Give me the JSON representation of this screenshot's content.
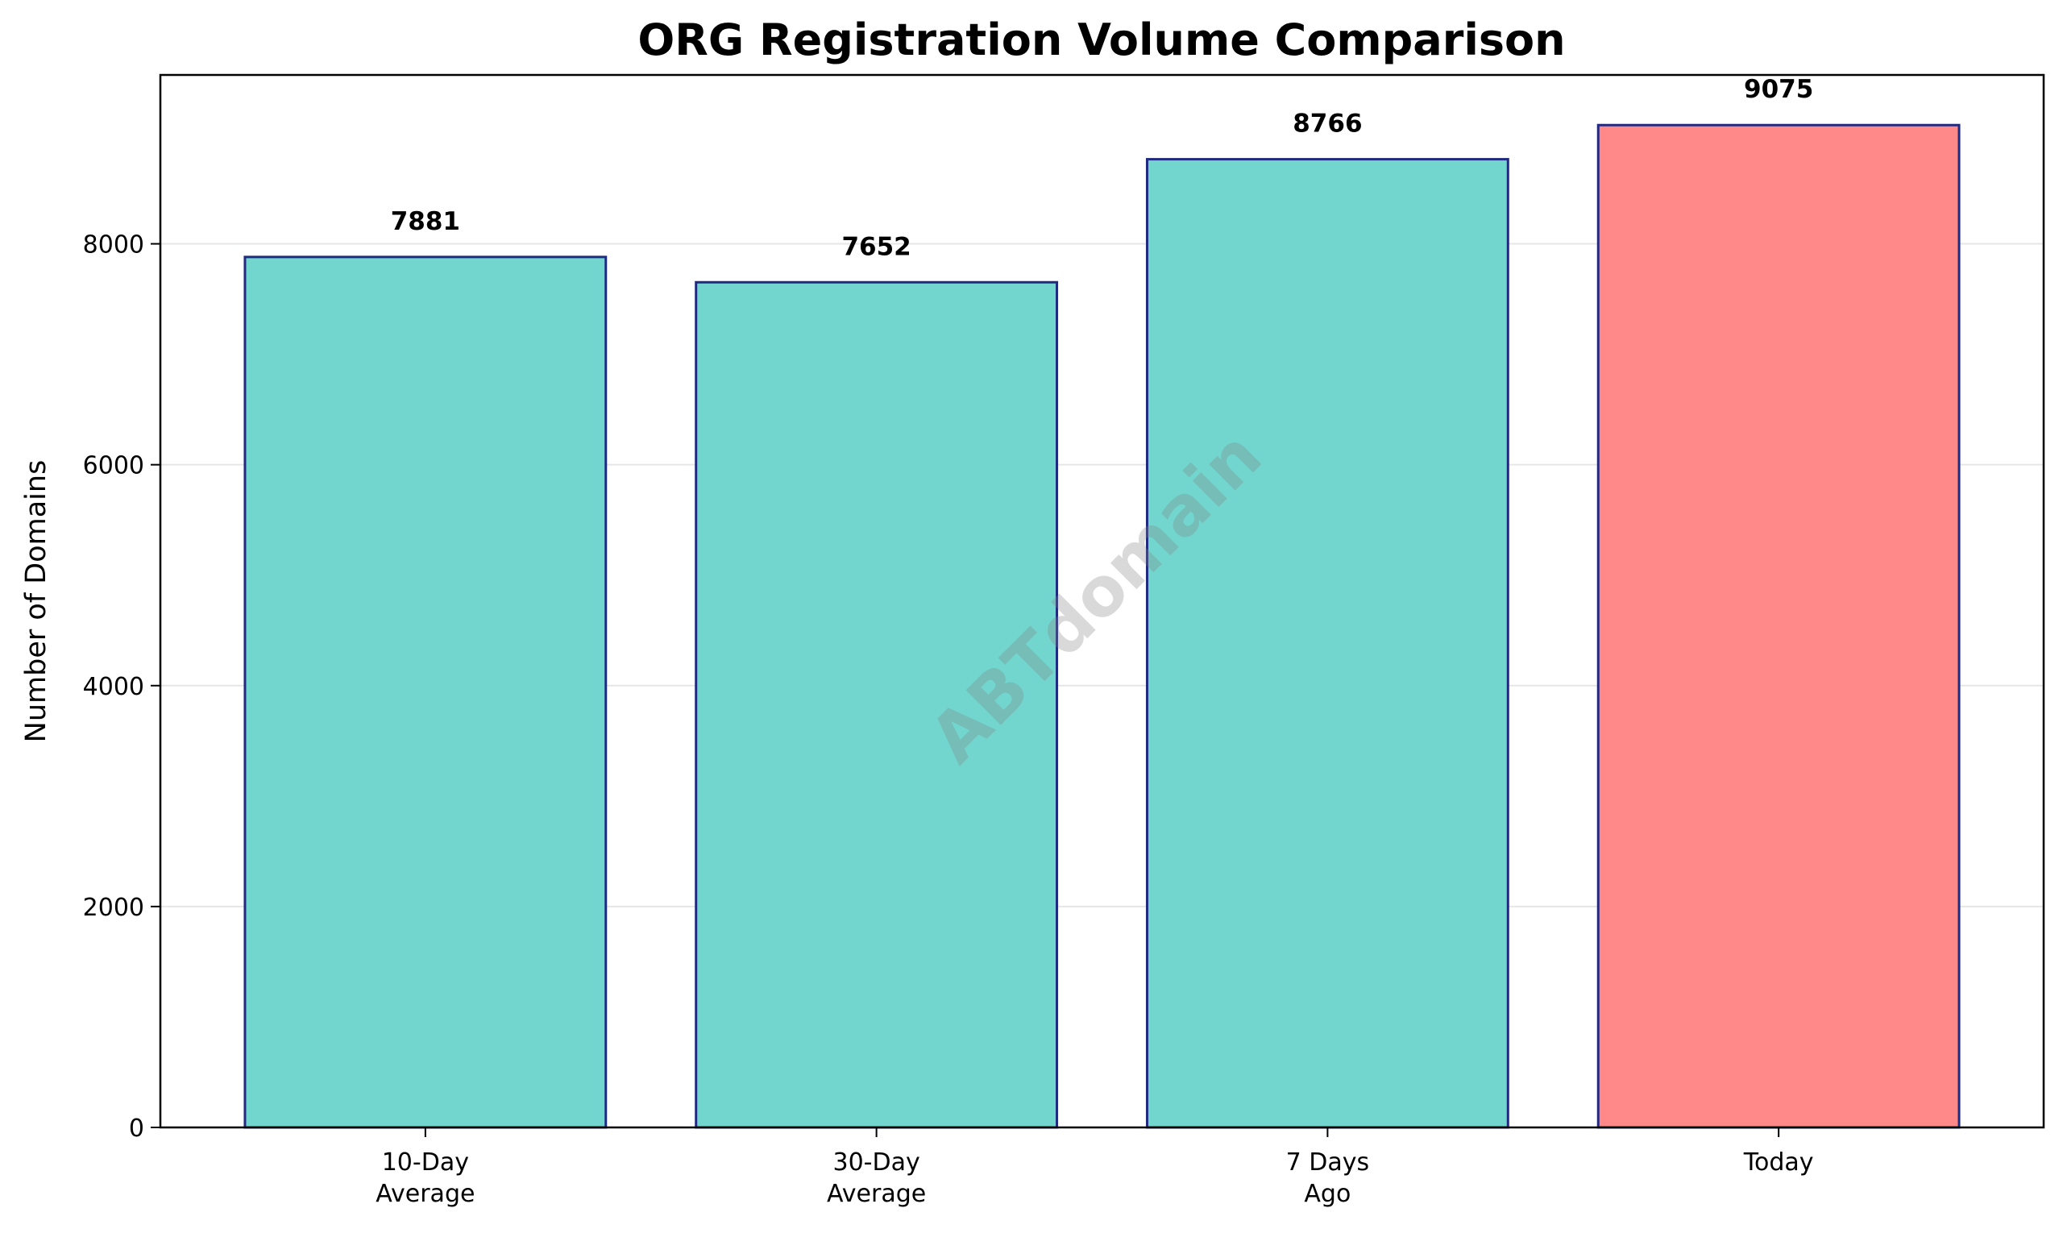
{
  "chart_data": {
    "type": "bar",
    "title": "ORG Registration Volume Comparison",
    "ylabel": "Number of Domains",
    "categories": [
      "10-Day\nAverage",
      "30-Day\nAverage",
      "7 Days\nAgo",
      "Today"
    ],
    "values": [
      7881,
      7652,
      8766,
      9075
    ],
    "colors": [
      "#72d6cf",
      "#72d6cf",
      "#72d6cf",
      "#ff8888"
    ],
    "edge_color": "#1f2a80",
    "ylim": [
      0,
      9529
    ],
    "yticks": [
      0,
      2000,
      4000,
      6000,
      8000
    ],
    "grid": true,
    "watermark": "ABTdomain"
  }
}
